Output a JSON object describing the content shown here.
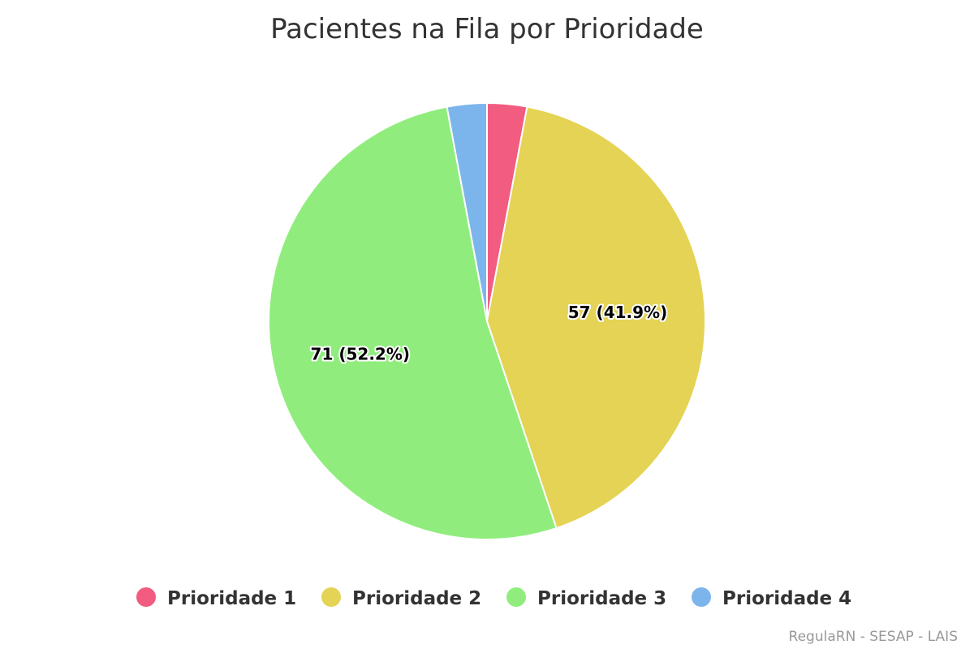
{
  "chart_data": {
    "type": "pie",
    "title": "Pacientes na Fila por Prioridade",
    "series": [
      {
        "name": "Prioridade 1",
        "value": 4,
        "color": "#f15c80",
        "label": ""
      },
      {
        "name": "Prioridade 2",
        "value": 57,
        "color": "#e4d354",
        "label": "57 (41.9%)"
      },
      {
        "name": "Prioridade 3",
        "value": 71,
        "color": "#90ed7d",
        "label": "71 (52.2%)"
      },
      {
        "name": "Prioridade 4",
        "value": 4,
        "color": "#7cb5ec",
        "label": ""
      }
    ],
    "legend_position": "bottom-center",
    "credits": "RegulaRN - SESAP - LAIS"
  }
}
